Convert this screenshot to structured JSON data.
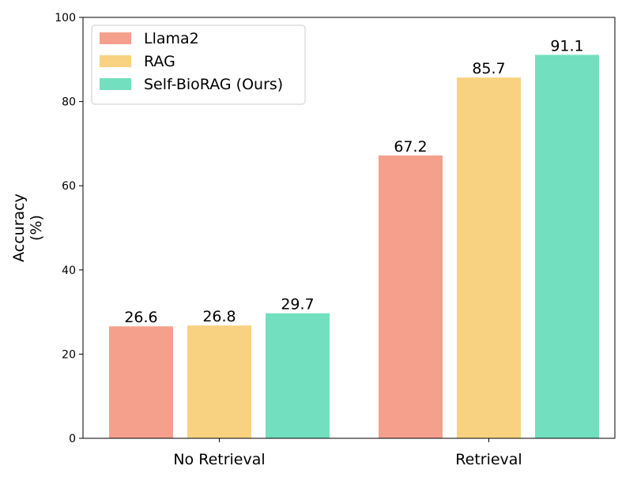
{
  "chart_data": {
    "type": "bar",
    "categories": [
      "No Retrieval",
      "Retrieval"
    ],
    "series": [
      {
        "name": "Llama2",
        "color": "#f5a08c",
        "values": [
          26.6,
          67.2
        ],
        "labels": [
          "26.6",
          "67.2"
        ]
      },
      {
        "name": "RAG",
        "color": "#f8d280",
        "values": [
          26.8,
          85.7
        ],
        "labels": [
          "26.8",
          "85.7"
        ]
      },
      {
        "name": "Self-BioRAG (Ours)",
        "color": "#72dfbf",
        "values": [
          29.7,
          91.1
        ],
        "labels": [
          "29.7",
          "91.1"
        ]
      }
    ],
    "ylabel_line1": "Accuracy",
    "ylabel_line2": "(%)",
    "ylim": [
      0,
      100
    ],
    "yticks": [
      "0",
      "20",
      "40",
      "60",
      "80",
      "100"
    ],
    "ytick_values": [
      0,
      20,
      40,
      60,
      80,
      100
    ],
    "grid": false,
    "legend_position": "top-left"
  }
}
